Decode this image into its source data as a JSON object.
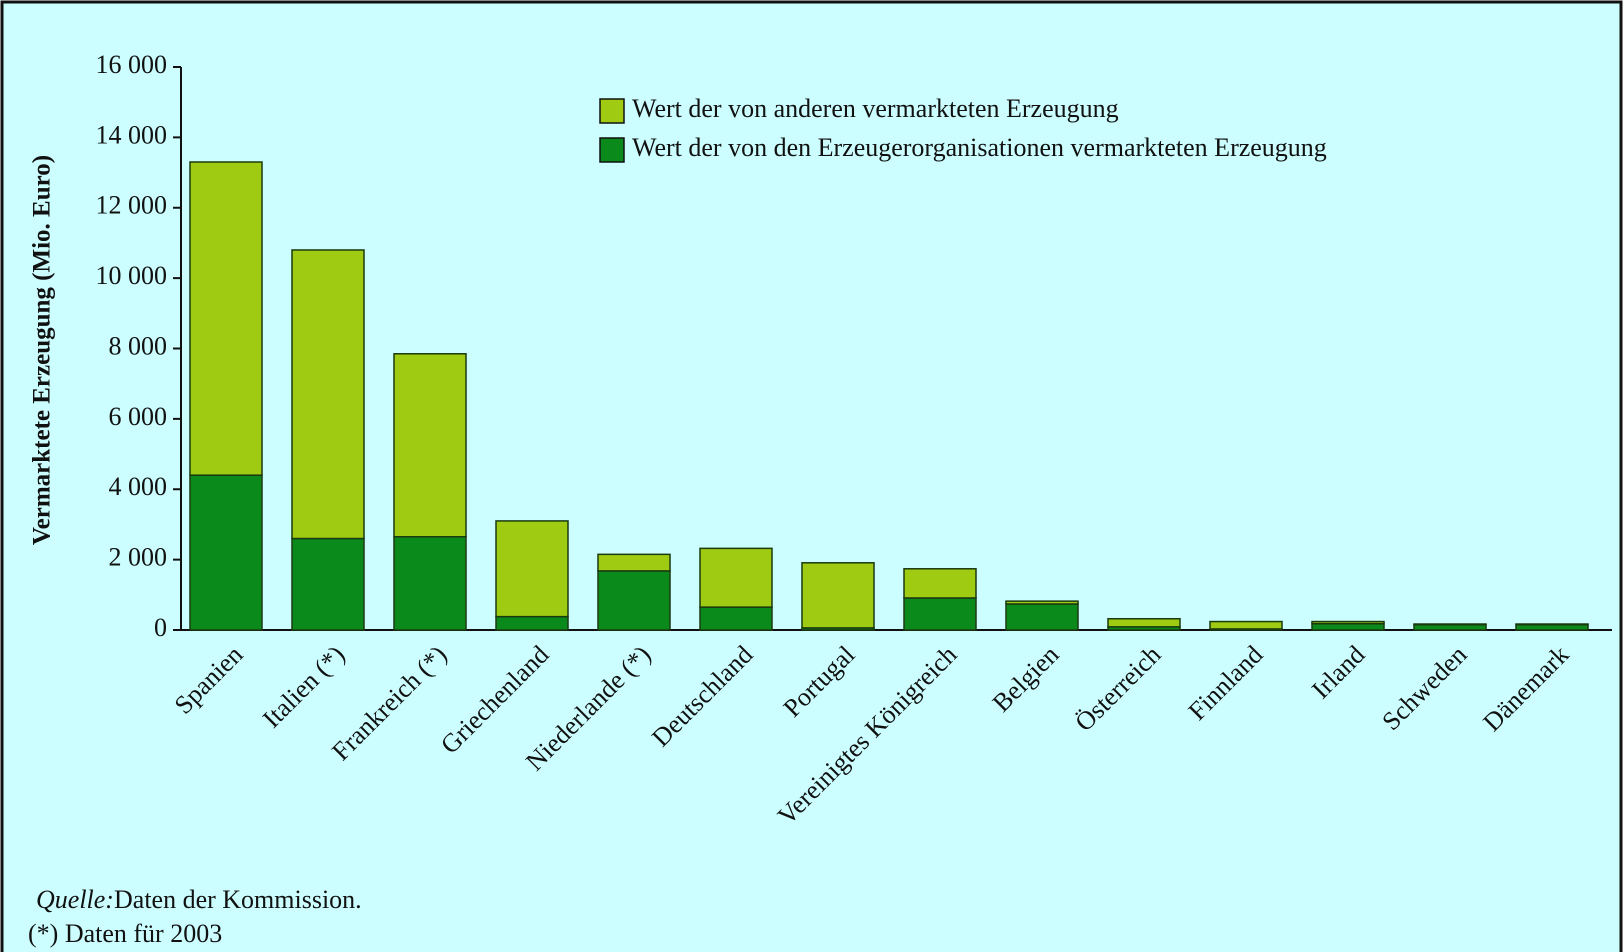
{
  "chart_data": {
    "type": "stacked_bar",
    "y_label": "Vermarktete Erzeugung (Mio. Euro)",
    "categories": [
      "Spanien",
      "Italien (*)",
      "Frankreich (*)",
      "Griechenland",
      "Niederlande (*)",
      "Deutschland",
      "Portugal",
      "Vereinigtes Königreich",
      "Belgien",
      "Österreich",
      "Finnland",
      "Irland",
      "Schweden",
      "Dänemark"
    ],
    "series": [
      {
        "name": "Wert der von anderen vermarkteten Erzeugung",
        "color": "#9fcb12",
        "values": [
          8900,
          8200,
          5200,
          2720,
          470,
          1670,
          1850,
          830,
          80,
          230,
          210,
          60,
          20,
          20
        ]
      },
      {
        "name": "Wert der von den Erzeugerorganisationen vermarkteten Erzeugung",
        "color": "#0b8a1c",
        "values": [
          4400,
          2600,
          2650,
          380,
          1680,
          650,
          60,
          910,
          740,
          90,
          30,
          180,
          150,
          150
        ]
      }
    ],
    "ylim": [
      0,
      16000
    ],
    "yticks": [
      0,
      {
        "value": 2000,
        "label": "2 000"
      },
      {
        "value": 4000,
        "label": "4 000"
      },
      {
        "value": 6000,
        "label": "6 000"
      },
      {
        "value": 8000,
        "label": "8 000"
      },
      {
        "value": 10000,
        "label": "10 000"
      },
      {
        "value": 12000,
        "label": "12 000"
      },
      {
        "value": 14000,
        "label": "14 000"
      },
      {
        "value": 16000,
        "label": "16 000"
      }
    ],
    "legend": "top-right",
    "source_label": "Quelle:",
    "source": "Daten der Kommission.",
    "note": "(*) Daten für 2003"
  }
}
